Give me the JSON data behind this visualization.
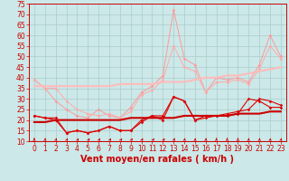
{
  "x": [
    0,
    1,
    2,
    3,
    4,
    5,
    6,
    7,
    8,
    9,
    10,
    11,
    12,
    13,
    14,
    15,
    16,
    17,
    18,
    19,
    20,
    21,
    22,
    23
  ],
  "line1": [
    22,
    21,
    21,
    14,
    15,
    14,
    15,
    17,
    15,
    15,
    19,
    22,
    20,
    31,
    29,
    20,
    21,
    22,
    22,
    23,
    30,
    29,
    26,
    26
  ],
  "line2": [
    22,
    21,
    20,
    14,
    15,
    14,
    15,
    17,
    15,
    15,
    20,
    22,
    22,
    31,
    29,
    20,
    22,
    22,
    23,
    24,
    25,
    30,
    29,
    27
  ],
  "line3": [
    39,
    35,
    29,
    25,
    22,
    21,
    25,
    22,
    21,
    26,
    33,
    36,
    41,
    72,
    49,
    46,
    33,
    40,
    39,
    40,
    38,
    46,
    60,
    50
  ],
  "line4": [
    39,
    35,
    35,
    29,
    25,
    23,
    22,
    23,
    21,
    24,
    32,
    34,
    39,
    55,
    45,
    43,
    33,
    38,
    38,
    39,
    37,
    44,
    55,
    49
  ],
  "line_trend1": [
    19,
    19,
    20,
    20,
    20,
    20,
    20,
    20,
    20,
    21,
    21,
    21,
    21,
    21,
    22,
    22,
    22,
    22,
    22,
    23,
    23,
    23,
    24,
    24
  ],
  "line_trend2": [
    36,
    36,
    36,
    36,
    36,
    36,
    36,
    36,
    37,
    37,
    37,
    37,
    38,
    38,
    38,
    39,
    40,
    40,
    41,
    41,
    42,
    43,
    44,
    45
  ],
  "bg_color": "#cce8e8",
  "grid_color": "#aacccc",
  "line1_color": "#dd0000",
  "line2_color": "#dd0000",
  "line3_color": "#ff9999",
  "line4_color": "#ffaaaa",
  "trend1_color": "#cc0000",
  "trend2_color": "#ffbbbb",
  "text_color": "#cc0000",
  "xlabel": "Vent moyen/en rafales ( km/h )",
  "tick_fontsize": 5.5,
  "xlabel_fontsize": 7,
  "ylim": [
    10,
    75
  ],
  "yticks": [
    10,
    15,
    20,
    25,
    30,
    35,
    40,
    45,
    50,
    55,
    60,
    65,
    70,
    75
  ],
  "xticks": [
    0,
    1,
    2,
    3,
    4,
    5,
    6,
    7,
    8,
    9,
    10,
    11,
    12,
    13,
    14,
    15,
    16,
    17,
    18,
    19,
    20,
    21,
    22,
    23
  ]
}
